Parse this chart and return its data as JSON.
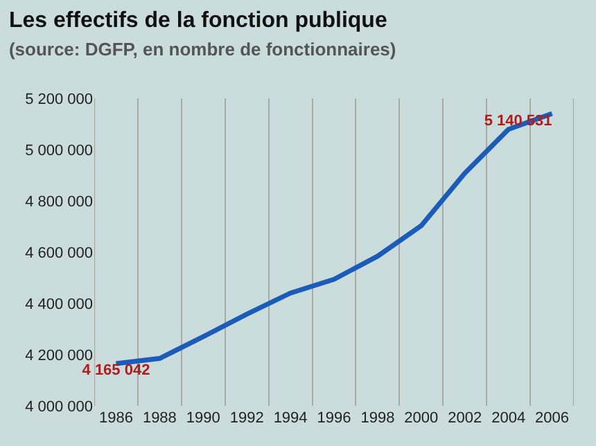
{
  "chart_data": {
    "type": "line",
    "title": "Les effectifs de la fonction publique",
    "subtitle": "(source: DGFP, en nombre de fonctionnaires)",
    "x": [
      1986,
      1988,
      1990,
      1992,
      1994,
      1996,
      1998,
      2000,
      2002,
      2004,
      2006
    ],
    "series": [
      {
        "color": "#1a5cb8",
        "values": [
          4165042,
          4185000,
          4270000,
          4358000,
          4440000,
          4494000,
          4584000,
          4703000,
          4908000,
          5079000,
          5140531
        ],
        "value_labels": [
          "4 165 042",
          null,
          null,
          null,
          null,
          null,
          null,
          null,
          null,
          null,
          "5 140 531"
        ]
      }
    ],
    "xlim": [
      1985,
      2007
    ],
    "xticks": [
      {
        "value": 1985,
        "label": null
      },
      1986,
      {
        "value": 1987,
        "label": null
      },
      1988,
      {
        "value": 1989,
        "label": null
      },
      1990,
      {
        "value": 1991,
        "label": null
      },
      1992,
      {
        "value": 1993,
        "label": null
      },
      1994,
      {
        "value": 1995,
        "label": null
      },
      1996,
      {
        "value": 1997,
        "label": null
      },
      1998,
      {
        "value": 1999,
        "label": null
      },
      2000,
      {
        "value": 2001,
        "label": null
      },
      2002,
      {
        "value": 2003,
        "label": null
      },
      2004,
      {
        "value": 2005,
        "label": null
      },
      2006,
      {
        "value": 2007,
        "label": null
      }
    ],
    "ylim": [
      4000000,
      5200000
    ],
    "yticks": [
      {
        "value": 4000000,
        "label": "4 000 000"
      },
      {
        "value": 4200000,
        "label": "4 200 000"
      },
      {
        "value": 4400000,
        "label": "4 400 000"
      },
      {
        "value": 4600000,
        "label": "4 600 000"
      },
      {
        "value": 4800000,
        "label": "4 800 000"
      },
      {
        "value": 5000000,
        "label": "5 000 000"
      },
      {
        "value": 5200000,
        "label": "5 200 000"
      }
    ],
    "grid": "x",
    "marker": "none",
    "line_style": "solid"
  }
}
